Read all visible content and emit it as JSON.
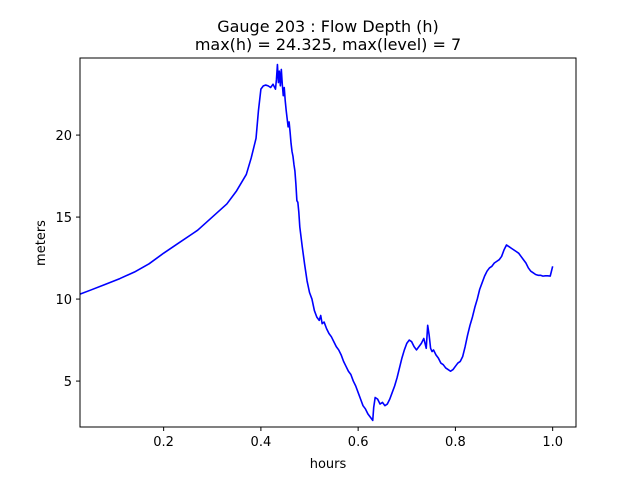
{
  "chart_data": {
    "type": "line",
    "title_line1": "Gauge 203 : Flow Depth (h)",
    "title_line2": "max(h) =  24.325,    max(level) = 7",
    "xlabel": "hours",
    "ylabel": "meters",
    "xlim": [
      0.028,
      1.048
    ],
    "ylim": [
      2.2,
      24.7
    ],
    "xticks": [
      {
        "value": 0.2,
        "label": "0.2"
      },
      {
        "value": 0.4,
        "label": "0.4"
      },
      {
        "value": 0.6,
        "label": "0.6"
      },
      {
        "value": 0.8,
        "label": "0.8"
      },
      {
        "value": 1.0,
        "label": "1.0"
      }
    ],
    "yticks": [
      {
        "value": 5,
        "label": "5"
      },
      {
        "value": 10,
        "label": "10"
      },
      {
        "value": 15,
        "label": "15"
      },
      {
        "value": 20,
        "label": "20"
      }
    ],
    "grid": false,
    "color": "#0000ff",
    "series": [
      {
        "x": [
          0.028,
          0.05,
          0.08,
          0.11,
          0.14,
          0.17,
          0.2,
          0.23,
          0.26,
          0.27,
          0.3,
          0.33,
          0.35,
          0.37,
          0.38,
          0.39,
          0.395,
          0.4,
          0.405,
          0.41,
          0.415,
          0.42,
          0.425,
          0.43,
          0.432,
          0.434,
          0.436,
          0.438,
          0.44,
          0.442,
          0.444,
          0.446,
          0.448,
          0.45,
          0.452,
          0.454,
          0.456,
          0.458,
          0.46,
          0.462,
          0.464,
          0.466,
          0.468,
          0.47,
          0.472,
          0.474,
          0.476,
          0.478,
          0.48,
          0.485,
          0.49,
          0.495,
          0.5,
          0.505,
          0.51,
          0.515,
          0.52,
          0.523,
          0.526,
          0.53,
          0.535,
          0.54,
          0.545,
          0.55,
          0.555,
          0.56,
          0.565,
          0.57,
          0.575,
          0.58,
          0.585,
          0.59,
          0.595,
          0.6,
          0.605,
          0.61,
          0.615,
          0.62,
          0.625,
          0.63,
          0.632,
          0.635,
          0.64,
          0.645,
          0.65,
          0.655,
          0.66,
          0.665,
          0.67,
          0.675,
          0.68,
          0.685,
          0.69,
          0.695,
          0.7,
          0.705,
          0.71,
          0.715,
          0.72,
          0.725,
          0.73,
          0.735,
          0.74,
          0.743,
          0.746,
          0.749,
          0.752,
          0.755,
          0.76,
          0.765,
          0.77,
          0.775,
          0.78,
          0.785,
          0.79,
          0.795,
          0.8,
          0.805,
          0.81,
          0.815,
          0.82,
          0.825,
          0.83,
          0.835,
          0.84,
          0.845,
          0.85,
          0.855,
          0.86,
          0.865,
          0.87,
          0.875,
          0.88,
          0.885,
          0.89,
          0.895,
          0.9,
          0.905,
          0.91,
          0.915,
          0.92,
          0.925,
          0.93,
          0.935,
          0.94,
          0.945,
          0.95,
          0.955,
          0.96,
          0.965,
          0.97,
          0.975,
          0.98,
          0.985,
          0.99,
          0.995,
          1.0
        ],
        "values": [
          10.3,
          10.55,
          10.9,
          11.25,
          11.65,
          12.15,
          12.8,
          13.4,
          14.0,
          14.2,
          15.0,
          15.8,
          16.6,
          17.6,
          18.6,
          19.8,
          21.5,
          22.8,
          23.0,
          23.05,
          23.0,
          22.9,
          23.1,
          22.8,
          23.4,
          24.3,
          23.2,
          23.9,
          23.0,
          24.0,
          23.1,
          22.4,
          22.9,
          22.1,
          21.5,
          21.0,
          20.5,
          20.8,
          20.2,
          19.5,
          19.0,
          18.7,
          18.2,
          17.8,
          17.0,
          16.0,
          15.9,
          15.3,
          14.4,
          13.2,
          12.1,
          11.1,
          10.4,
          10.0,
          9.3,
          8.9,
          8.7,
          9.0,
          8.5,
          8.6,
          8.2,
          7.9,
          7.7,
          7.4,
          7.1,
          6.9,
          6.6,
          6.2,
          5.9,
          5.6,
          5.4,
          5.0,
          4.7,
          4.3,
          3.9,
          3.5,
          3.3,
          3.0,
          2.8,
          2.6,
          3.4,
          4.0,
          3.9,
          3.6,
          3.7,
          3.5,
          3.6,
          3.9,
          4.3,
          4.7,
          5.2,
          5.8,
          6.4,
          6.9,
          7.3,
          7.5,
          7.4,
          7.1,
          6.9,
          7.1,
          7.3,
          7.6,
          7.0,
          8.4,
          7.8,
          7.0,
          6.8,
          6.9,
          6.6,
          6.4,
          6.1,
          6.0,
          5.8,
          5.7,
          5.6,
          5.7,
          5.9,
          6.1,
          6.2,
          6.5,
          7.1,
          7.8,
          8.4,
          8.9,
          9.5,
          10.0,
          10.6,
          11.0,
          11.4,
          11.7,
          11.9,
          12.0,
          12.2,
          12.3,
          12.4,
          12.6,
          13.0,
          13.3,
          13.2,
          13.1,
          13.0,
          12.9,
          12.8,
          12.6,
          12.4,
          12.2,
          11.9,
          11.7,
          11.6,
          11.5,
          11.45,
          11.45,
          11.4,
          11.42,
          11.42,
          11.4,
          12.0
        ]
      }
    ]
  }
}
